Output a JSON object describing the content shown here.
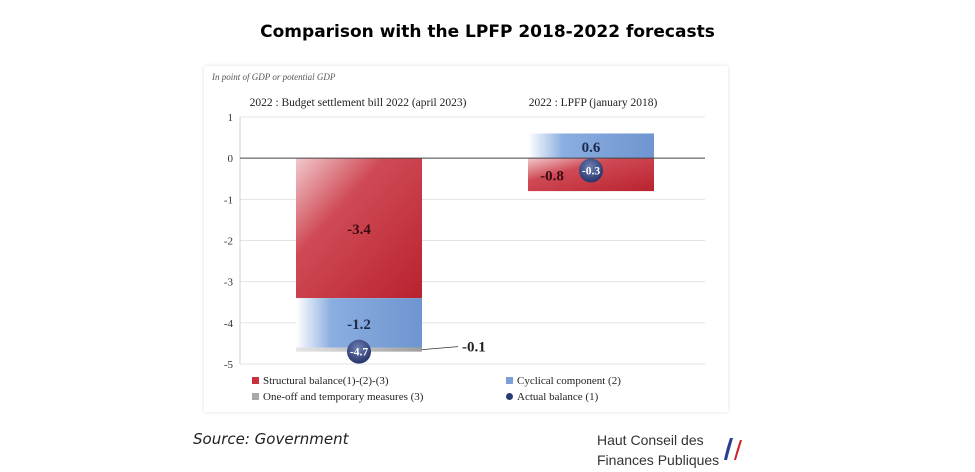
{
  "title": "Comparison with the LPFP 2018-2022 forecasts",
  "source": "Source: Government",
  "logo": {
    "line1": "Haut Conseil des",
    "line2": "Finances Publiques"
  },
  "colors": {
    "structural": "#c8313c",
    "cyclical": "#7a9fd6",
    "oneoff": "#a8a8a8",
    "actual": "#2a3a72"
  },
  "chart_data": {
    "type": "bar",
    "stacked": true,
    "subtitle": "In point of GDP or potential GDP",
    "categories": [
      "2022 : Budget settlement bill 2022 (april 2023)",
      "2022 : LPFP (january 2018)"
    ],
    "series": [
      {
        "name": "Structural balance(1)-(2)-(3)",
        "values": [
          -3.4,
          -0.8
        ],
        "labels": [
          "-3.4",
          "-0.8"
        ]
      },
      {
        "name": "Cyclical component (2)",
        "values": [
          -1.2,
          0.6
        ],
        "labels": [
          "-1.2",
          "0.6"
        ]
      },
      {
        "name": "One-off and temporary measures (3)",
        "values": [
          -0.1,
          0.0
        ],
        "labels": [
          "-0.1",
          ""
        ]
      }
    ],
    "markers": {
      "name": "Actual balance (1)",
      "values": [
        -4.7,
        -0.3
      ],
      "labels": [
        "-4.7",
        "-0.3"
      ]
    },
    "ylim": [
      -5,
      1
    ],
    "yticks": [
      "1",
      "0",
      "-1",
      "-2",
      "-3",
      "-4",
      "-5"
    ],
    "legend_position": "bottom",
    "grid": true
  }
}
